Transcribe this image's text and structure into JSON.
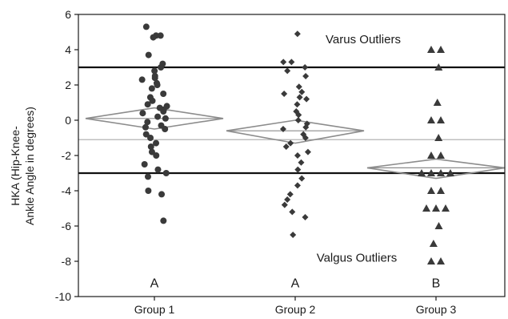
{
  "chart_data": {
    "type": "scatter",
    "title": "",
    "xlabel": "",
    "ylabel": [
      "HKA (Hip-Knee-",
      "Ankle Angle in degrees)"
    ],
    "ylim": [
      -10,
      6
    ],
    "yticks": [
      "6",
      "4",
      "2",
      "0",
      "-2",
      "-4",
      "-6",
      "-8",
      "-10"
    ],
    "categories": [
      "Group 1",
      "Group 2",
      "Group 3"
    ],
    "colors": {
      "points": "#3a3a3a",
      "diamond": "#8c8c8c",
      "threshold": "#111111",
      "grand_mean": "#aaaaaa"
    },
    "series": [
      {
        "category": "Group 1",
        "marker": "circle",
        "values": [
          5.3,
          4.8,
          4.8,
          4.7,
          3.7,
          3.2,
          3.0,
          2.8,
          2.5,
          2.4,
          2.3,
          2.1,
          2.0,
          1.8,
          1.5,
          1.3,
          1.1,
          0.9,
          0.8,
          0.7,
          0.6,
          0.5,
          0.4,
          0.2,
          0.1,
          -0.1,
          -0.3,
          -0.4,
          -0.5,
          -0.8,
          -1.0,
          -1.3,
          -1.5,
          -1.8,
          -2.0,
          -2.5,
          -2.8,
          -3.0,
          -3.2,
          -4.0,
          -4.2,
          -5.7
        ],
        "mean": 0.1,
        "ci": [
          -0.5,
          0.7
        ]
      },
      {
        "category": "Group 2",
        "marker": "diamond",
        "values": [
          4.9,
          3.3,
          3.3,
          3.0,
          2.8,
          2.5,
          1.9,
          1.6,
          1.5,
          1.3,
          1.2,
          0.9,
          0.5,
          0.3,
          0.0,
          -0.2,
          -0.4,
          -0.5,
          -0.8,
          -1.0,
          -1.3,
          -1.5,
          -1.8,
          -2.0,
          -2.4,
          -2.8,
          -3.3,
          -3.7,
          -4.2,
          -4.5,
          -4.8,
          -5.2,
          -5.5,
          -6.5
        ],
        "mean": -0.6,
        "ci": [
          -1.3,
          0.0
        ]
      },
      {
        "category": "Group 3",
        "marker": "triangle",
        "values": [
          4.0,
          4.0,
          3.0,
          1.0,
          0.0,
          0.0,
          -1.0,
          -2.0,
          -2.0,
          -3.0,
          -3.0,
          -3.0,
          -3.0,
          -4.0,
          -4.0,
          -5.0,
          -5.0,
          -5.0,
          -6.0,
          -7.0,
          -8.0,
          -8.0
        ],
        "mean": -2.7,
        "ci": [
          -3.3,
          -2.2
        ]
      }
    ],
    "reference_lines": [
      {
        "name": "varus-threshold",
        "y": 3
      },
      {
        "name": "valgus-threshold",
        "y": -3
      },
      {
        "name": "grand-mean",
        "y": -1.1
      }
    ],
    "annotations": {
      "varus": "Varus Outliers",
      "valgus": "Valgus Outliers"
    },
    "group_letters": [
      "A",
      "A",
      "B"
    ]
  }
}
